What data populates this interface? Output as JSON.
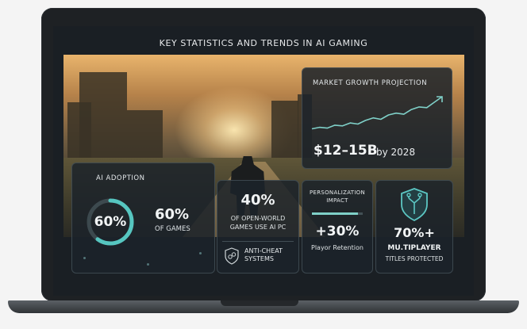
{
  "screen": {
    "title": "KEY STATISTICS AND TRENDS IN AI GAMING"
  },
  "market": {
    "title": "MARKET GROWTH PROJECTION",
    "value": "$12–15B",
    "year": "by 2028",
    "line_color": "#7fd0c8",
    "trend": [
      0.12,
      0.16,
      0.14,
      0.22,
      0.2,
      0.28,
      0.25,
      0.35,
      0.42,
      0.38,
      0.5,
      0.55,
      0.52,
      0.65,
      0.72,
      0.7,
      0.85,
      1.0
    ]
  },
  "adoption": {
    "title": "AI ADOPTION",
    "ring_label": "60%",
    "ring_fraction": 0.6,
    "value": "60%",
    "subtitle": "OF GAMES",
    "accent": "#56c6c0"
  },
  "open_world": {
    "value": "40%",
    "subtitle_line1": "OF OPEN-WORLD",
    "subtitle_line2": "GAMES USE AI PC",
    "anti_line1": "ANTI-CHEAT",
    "anti_line2": "SYSTEMS",
    "icon": "shield-icon"
  },
  "personalization": {
    "title_line1": "PERSONALIZATION",
    "title_line2": "IMPACT",
    "bar_fraction": 0.9,
    "value": "+30%",
    "subtitle": "Playor Retention"
  },
  "multiplayer": {
    "value": "70%+",
    "subtitle1": "MU.TIPLAYER",
    "subtitle2": "TITLES PROTECTED",
    "icon": "shield-circuit-icon",
    "accent": "#5cc7c3"
  }
}
